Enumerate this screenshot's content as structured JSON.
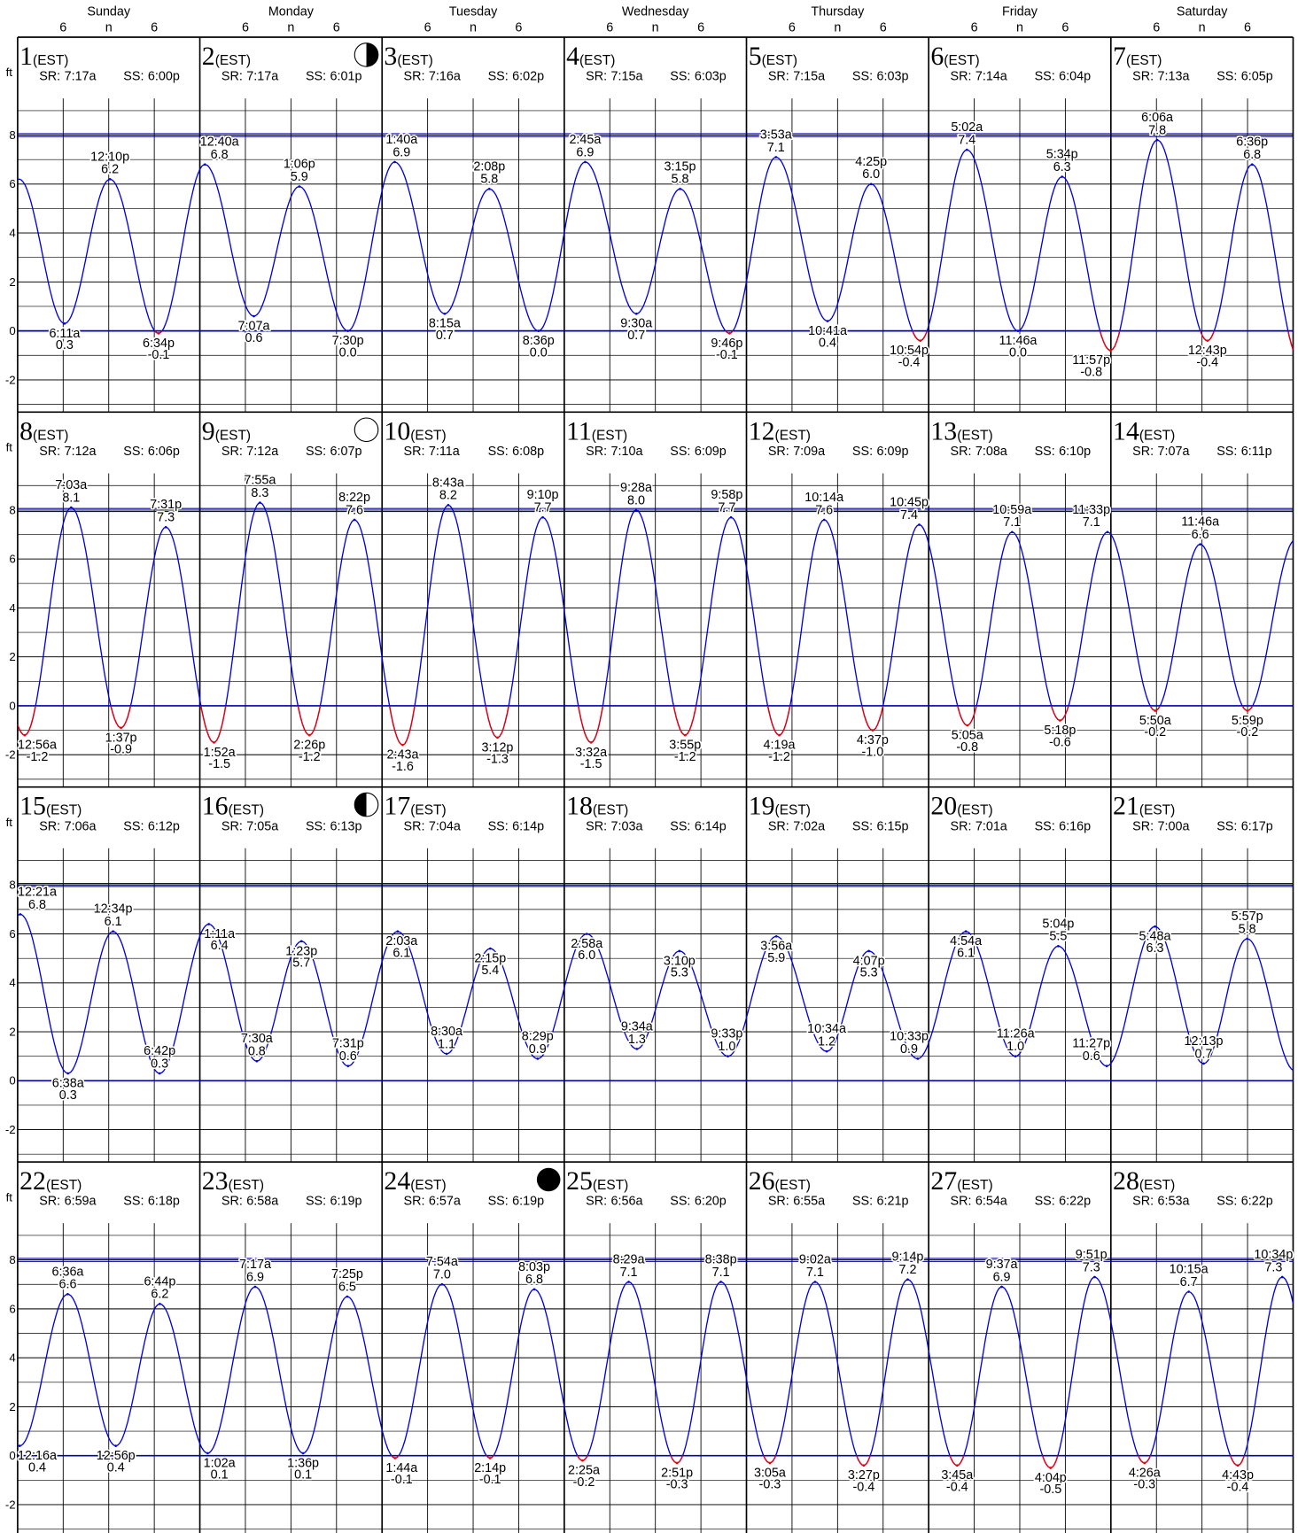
{
  "chart_data": {
    "type": "tide-calendar",
    "weekdays": [
      "Sunday",
      "Monday",
      "Tuesday",
      "Wednesday",
      "Thursday",
      "Friday",
      "Saturday"
    ],
    "hour_marks": [
      {
        "value": 6,
        "label": "6"
      },
      {
        "value": 12,
        "label": "n"
      },
      {
        "value": 18,
        "label": "6"
      }
    ],
    "unit": "ft",
    "zone": "(EST)",
    "sunrise_label": "SR:",
    "sunset_label": "SS:",
    "ylim": [
      -3.3,
      9.5
    ],
    "yticks": [
      8,
      6,
      4,
      2,
      0,
      -2
    ],
    "grid_step": 1,
    "curve_color": "#0000dd",
    "below_zero_color": "#ee0000",
    "reference_lines": [
      {
        "value": 0,
        "color": "#0000aa",
        "double": false
      },
      {
        "value": 8,
        "color": "#0000aa",
        "double": true
      }
    ],
    "days": [
      {
        "day": 1,
        "sunrise": "7:17a",
        "sunset": "6:00p",
        "extremes": [
          {
            "time": "6:11a",
            "height": 0.3
          },
          {
            "time": "12:10p",
            "height": 6.2
          },
          {
            "time": "6:34p",
            "height": -0.1
          }
        ]
      },
      {
        "day": 2,
        "sunrise": "7:17a",
        "sunset": "6:01p",
        "moon": "first-quarter",
        "extremes": [
          {
            "time": "12:40a",
            "height": 6.8
          },
          {
            "time": "7:07a",
            "height": 0.6
          },
          {
            "time": "1:06p",
            "height": 5.9
          },
          {
            "time": "7:30p",
            "height": 0,
            "height_label": "0.0"
          }
        ]
      },
      {
        "day": 3,
        "sunrise": "7:16a",
        "sunset": "6:02p",
        "extremes": [
          {
            "time": "1:40a",
            "height": 6.9
          },
          {
            "time": "8:15a",
            "height": 0.7
          },
          {
            "time": "2:08p",
            "height": 5.8
          },
          {
            "time": "8:36p",
            "height": 0,
            "height_label": "0.0"
          }
        ]
      },
      {
        "day": 4,
        "sunrise": "7:15a",
        "sunset": "6:03p",
        "extremes": [
          {
            "time": "2:45a",
            "height": 6.9
          },
          {
            "time": "9:30a",
            "height": 0.7
          },
          {
            "time": "3:15p",
            "height": 5.8
          },
          {
            "time": "9:46p",
            "height": -0.1
          }
        ]
      },
      {
        "day": 5,
        "sunrise": "7:15a",
        "sunset": "6:03p",
        "extremes": [
          {
            "time": "3:53a",
            "height": 7.1
          },
          {
            "time": "10:41a",
            "height": 0.4
          },
          {
            "time": "4:25p",
            "height": 6,
            "height_label": "6.0"
          },
          {
            "time": "10:54p",
            "height": -0.4
          }
        ]
      },
      {
        "day": 6,
        "sunrise": "7:14a",
        "sunset": "6:04p",
        "extremes": [
          {
            "time": "5:02a",
            "height": 7.4
          },
          {
            "time": "11:46a",
            "height": 0,
            "height_label": "0.0"
          },
          {
            "time": "5:34p",
            "height": 6.3
          },
          {
            "time": "11:57p",
            "height": -0.8
          }
        ]
      },
      {
        "day": 7,
        "sunrise": "7:13a",
        "sunset": "6:05p",
        "extremes": [
          {
            "time": "6:06a",
            "height": 7.8
          },
          {
            "time": "12:43p",
            "height": -0.4
          },
          {
            "time": "6:36p",
            "height": 6.8
          }
        ]
      },
      {
        "day": 8,
        "sunrise": "7:12a",
        "sunset": "6:06p",
        "extremes": [
          {
            "time": "12:56a",
            "height": -1.2
          },
          {
            "time": "7:03a",
            "height": 8.1
          },
          {
            "time": "1:37p",
            "height": -0.9
          },
          {
            "time": "7:31p",
            "height": 7.3
          }
        ]
      },
      {
        "day": 9,
        "sunrise": "7:12a",
        "sunset": "6:07p",
        "moon": "full",
        "extremes": [
          {
            "time": "1:52a",
            "height": -1.5
          },
          {
            "time": "7:55a",
            "height": 8.3
          },
          {
            "time": "2:26p",
            "height": -1.2
          },
          {
            "time": "8:22p",
            "height": 7.6
          }
        ]
      },
      {
        "day": 10,
        "sunrise": "7:11a",
        "sunset": "6:08p",
        "extremes": [
          {
            "time": "2:43a",
            "height": -1.6
          },
          {
            "time": "8:43a",
            "height": 8.2
          },
          {
            "time": "3:12p",
            "height": -1.3
          },
          {
            "time": "9:10p",
            "height": 7.7
          }
        ]
      },
      {
        "day": 11,
        "sunrise": "7:10a",
        "sunset": "6:09p",
        "extremes": [
          {
            "time": "3:32a",
            "height": -1.5
          },
          {
            "time": "9:28a",
            "height": 8,
            "height_label": "8.0"
          },
          {
            "time": "3:55p",
            "height": -1.2
          },
          {
            "time": "9:58p",
            "height": 7.7
          }
        ]
      },
      {
        "day": 12,
        "sunrise": "7:09a",
        "sunset": "6:09p",
        "extremes": [
          {
            "time": "4:19a",
            "height": -1.2
          },
          {
            "time": "10:14a",
            "height": 7.6
          },
          {
            "time": "4:37p",
            "height": -1,
            "height_label": "-1.0"
          },
          {
            "time": "10:45p",
            "height": 7.4
          }
        ]
      },
      {
        "day": 13,
        "sunrise": "7:08a",
        "sunset": "6:10p",
        "extremes": [
          {
            "time": "5:05a",
            "height": -0.8
          },
          {
            "time": "10:59a",
            "height": 7.1
          },
          {
            "time": "5:18p",
            "height": -0.6
          },
          {
            "time": "11:33p",
            "height": 7.1
          }
        ]
      },
      {
        "day": 14,
        "sunrise": "7:07a",
        "sunset": "6:11p",
        "extremes": [
          {
            "time": "5:50a",
            "height": -0.2
          },
          {
            "time": "11:46a",
            "height": 6.6
          },
          {
            "time": "5:59p",
            "height": -0.2
          }
        ]
      },
      {
        "day": 15,
        "sunrise": "7:06a",
        "sunset": "6:12p",
        "extremes": [
          {
            "time": "12:21a",
            "height": 6.8
          },
          {
            "time": "6:38a",
            "height": 0.3
          },
          {
            "time": "12:34p",
            "height": 6.1
          },
          {
            "time": "6:42p",
            "height": 0.3
          }
        ]
      },
      {
        "day": 16,
        "sunrise": "7:05a",
        "sunset": "6:13p",
        "moon": "last-quarter",
        "extremes": [
          {
            "time": "1:11a",
            "height": 6.4
          },
          {
            "time": "7:30a",
            "height": 0.8
          },
          {
            "time": "1:23p",
            "height": 5.7
          },
          {
            "time": "7:31p",
            "height": 0.6
          }
        ]
      },
      {
        "day": 17,
        "sunrise": "7:04a",
        "sunset": "6:14p",
        "extremes": [
          {
            "time": "2:03a",
            "height": 6.1
          },
          {
            "time": "8:30a",
            "height": 1.1
          },
          {
            "time": "2:15p",
            "height": 5.4
          },
          {
            "time": "8:29p",
            "height": 0.9
          }
        ]
      },
      {
        "day": 18,
        "sunrise": "7:03a",
        "sunset": "6:14p",
        "extremes": [
          {
            "time": "2:58a",
            "height": 6,
            "height_label": "6.0"
          },
          {
            "time": "9:34a",
            "height": 1.3
          },
          {
            "time": "3:10p",
            "height": 5.3
          },
          {
            "time": "9:33p",
            "height": 1,
            "height_label": "1.0"
          }
        ]
      },
      {
        "day": 19,
        "sunrise": "7:02a",
        "sunset": "6:15p",
        "extremes": [
          {
            "time": "3:56a",
            "height": 5.9
          },
          {
            "time": "10:34a",
            "height": 1.2
          },
          {
            "time": "4:07p",
            "height": 5.3
          },
          {
            "time": "10:33p",
            "height": 0.9
          }
        ]
      },
      {
        "day": 20,
        "sunrise": "7:01a",
        "sunset": "6:16p",
        "extremes": [
          {
            "time": "4:54a",
            "height": 6.1
          },
          {
            "time": "11:26a",
            "height": 1,
            "height_label": "1.0"
          },
          {
            "time": "5:04p",
            "height": 5.5
          },
          {
            "time": "11:27p",
            "height": 0.6
          }
        ]
      },
      {
        "day": 21,
        "sunrise": "7:00a",
        "sunset": "6:17p",
        "extremes": [
          {
            "time": "5:48a",
            "height": 6.3
          },
          {
            "time": "12:13p",
            "height": 0.7
          },
          {
            "time": "5:57p",
            "height": 5.8
          }
        ]
      },
      {
        "day": 22,
        "sunrise": "6:59a",
        "sunset": "6:18p",
        "extremes": [
          {
            "time": "12:16a",
            "height": 0.4
          },
          {
            "time": "6:36a",
            "height": 6.6
          },
          {
            "time": "12:56p",
            "height": 0.4
          },
          {
            "time": "6:44p",
            "height": 6.2
          }
        ]
      },
      {
        "day": 23,
        "sunrise": "6:58a",
        "sunset": "6:19p",
        "extremes": [
          {
            "time": "1:02a",
            "height": 0.1
          },
          {
            "time": "7:17a",
            "height": 6.9
          },
          {
            "time": "1:36p",
            "height": 0.1
          },
          {
            "time": "7:25p",
            "height": 6.5
          }
        ]
      },
      {
        "day": 24,
        "sunrise": "6:57a",
        "sunset": "6:19p",
        "moon": "new",
        "extremes": [
          {
            "time": "1:44a",
            "height": -0.1
          },
          {
            "time": "7:54a",
            "height": 7,
            "height_label": "7.0"
          },
          {
            "time": "2:14p",
            "height": -0.1
          },
          {
            "time": "8:03p",
            "height": 6.8
          }
        ]
      },
      {
        "day": 25,
        "sunrise": "6:56a",
        "sunset": "6:20p",
        "extremes": [
          {
            "time": "2:25a",
            "height": -0.2
          },
          {
            "time": "8:29a",
            "height": 7.1
          },
          {
            "time": "2:51p",
            "height": -0.3
          },
          {
            "time": "8:38p",
            "height": 7.1
          }
        ]
      },
      {
        "day": 26,
        "sunrise": "6:55a",
        "sunset": "6:21p",
        "extremes": [
          {
            "time": "3:05a",
            "height": -0.3
          },
          {
            "time": "9:02a",
            "height": 7.1
          },
          {
            "time": "3:27p",
            "height": -0.4
          },
          {
            "time": "9:14p",
            "height": 7.2
          }
        ]
      },
      {
        "day": 27,
        "sunrise": "6:54a",
        "sunset": "6:22p",
        "extremes": [
          {
            "time": "3:45a",
            "height": -0.4
          },
          {
            "time": "9:37a",
            "height": 6.9
          },
          {
            "time": "4:04p",
            "height": -0.5
          },
          {
            "time": "9:51p",
            "height": 7.3
          }
        ]
      },
      {
        "day": 28,
        "sunrise": "6:53a",
        "sunset": "6:22p",
        "extremes": [
          {
            "time": "4:26a",
            "height": -0.3
          },
          {
            "time": "10:15a",
            "height": 6.7
          },
          {
            "time": "4:43p",
            "height": -0.4
          },
          {
            "time": "10:34p",
            "height": 7.3
          }
        ]
      }
    ]
  }
}
